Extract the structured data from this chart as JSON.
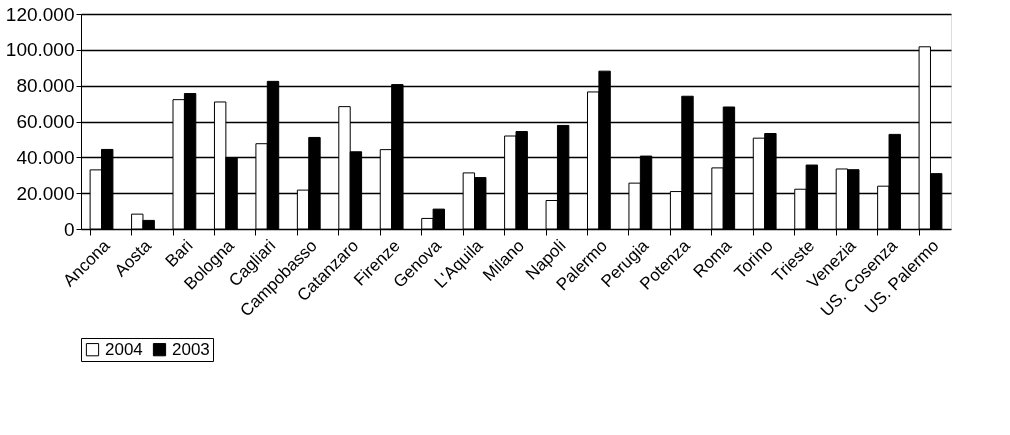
{
  "chart_data": {
    "type": "bar",
    "categories": [
      "Ancona",
      "Aosta",
      "Bari",
      "Bologna",
      "Cagliari",
      "Campobasso",
      "Catanzaro",
      "Firenze",
      "Genova",
      "L'Aquila",
      "Milano",
      "Napoli",
      "Palermo",
      "Perugia",
      "Potenza",
      "Roma",
      "Torino",
      "Trieste",
      "Venezia",
      "US. Cosenza",
      "US. Palermo"
    ],
    "series": [
      {
        "name": "2004",
        "color": "#ffffff",
        "values": [
          33000,
          8300,
          72200,
          70900,
          47600,
          21700,
          68300,
          44300,
          5900,
          31300,
          51900,
          15900,
          76500,
          25600,
          20900,
          34100,
          50700,
          22200,
          33500,
          23900,
          101700
        ]
      },
      {
        "name": "2003",
        "color": "#000000",
        "values": [
          44400,
          4800,
          75600,
          39800,
          82400,
          51100,
          43100,
          80600,
          11100,
          28700,
          54400,
          57800,
          88100,
          40700,
          74100,
          68100,
          53300,
          35700,
          33100,
          52800,
          30900
        ]
      }
    ],
    "ylim": [
      0,
      120000
    ],
    "yticks": [
      {
        "value": 0,
        "label": "0"
      },
      {
        "value": 20000,
        "label": "20.000"
      },
      {
        "value": 40000,
        "label": "40.000"
      },
      {
        "value": 60000,
        "label": "60.000"
      },
      {
        "value": 80000,
        "label": "80.000"
      },
      {
        "value": 100000,
        "label": "100.000"
      },
      {
        "value": 120000,
        "label": "120.000"
      }
    ],
    "grid": "y",
    "legend": "bottom"
  }
}
